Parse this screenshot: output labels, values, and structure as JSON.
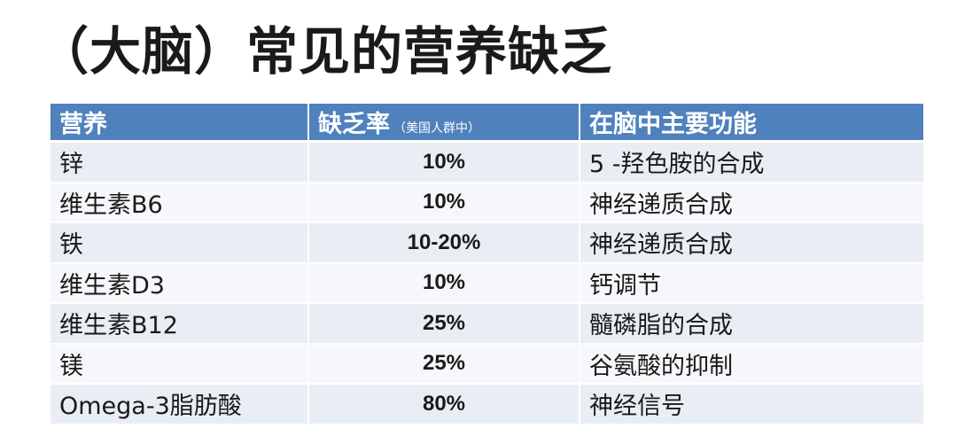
{
  "title": "（大脑）常见的营养缺乏",
  "table": {
    "headers": {
      "nutrient": "营养",
      "rate": "缺乏率",
      "rate_note": "（美国人群中）",
      "function": "在脑中主要功能"
    },
    "rows": [
      {
        "nutrient": "锌",
        "rate": "10%",
        "function": "5 -羟色胺的合成"
      },
      {
        "nutrient": "维生素B6",
        "rate": "10%",
        "function": "神经递质合成"
      },
      {
        "nutrient": "铁",
        "rate": "10-20%",
        "function": "神经递质合成"
      },
      {
        "nutrient": "维生素D3",
        "rate": "10%",
        "function": "钙调节"
      },
      {
        "nutrient": "维生素B12",
        "rate": "25%",
        "function": "髓磷脂的合成"
      },
      {
        "nutrient": "镁",
        "rate": "25%",
        "function": "谷氨酸的抑制"
      },
      {
        "nutrient": "Omega-3脂肪酸",
        "rate": "80%",
        "function": "神经信号"
      }
    ]
  },
  "colors": {
    "header_bg": "#4f81bd",
    "row_odd": "#e9edf4",
    "row_even": "#f6f7fa"
  }
}
